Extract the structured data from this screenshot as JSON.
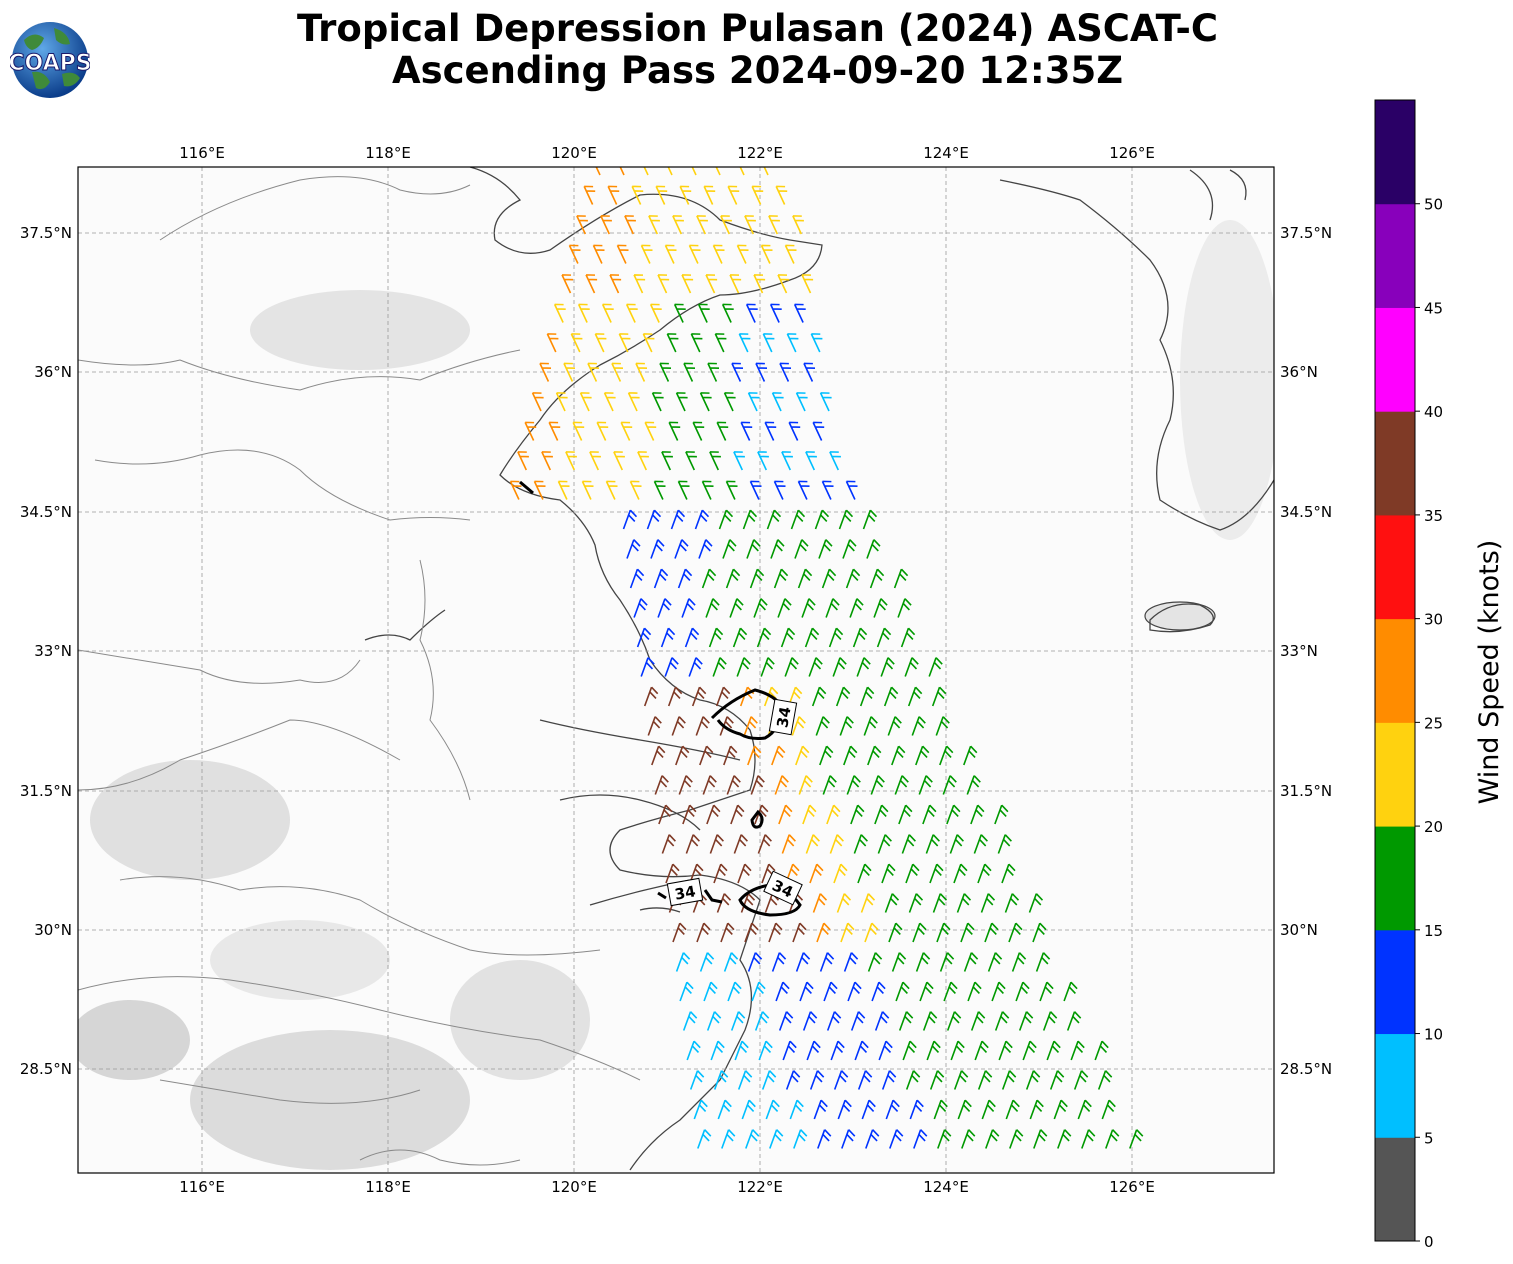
{
  "title_line1": "Tropical Depression Pulasan (2024) ASCAT-C",
  "title_line2": "Ascending Pass 2024-09-20 12:35Z",
  "logo_text": "COAPS",
  "lon_ticks": [
    "116°E",
    "118°E",
    "120°E",
    "122°E",
    "124°E",
    "126°E"
  ],
  "lat_ticks": [
    "37.5°N",
    "36°N",
    "34.5°N",
    "33°N",
    "31.5°N",
    "30°N",
    "28.5°N"
  ],
  "contour_labels": [
    "34",
    "34",
    "34"
  ],
  "colorbar": {
    "label": "Wind Speed (knots)",
    "ticks": [
      "0",
      "5",
      "10",
      "15",
      "20",
      "25",
      "30",
      "35",
      "40",
      "45",
      "50"
    ],
    "colors": [
      "#555555",
      "#00bfff",
      "#0033ff",
      "#009900",
      "#ffd20f",
      "#ff8c00",
      "#ff1010",
      "#7f3a26",
      "#ff00ff",
      "#8800bb",
      "#2a0066"
    ]
  },
  "chart_data": {
    "type": "map",
    "extent_lon": [
      114.65,
      127.5
    ],
    "extent_lat": [
      27.0,
      38.2
    ],
    "barb_color_bins_knots": [
      0,
      5,
      10,
      15,
      20,
      25,
      30,
      35,
      40,
      45,
      50,
      55
    ]
  }
}
